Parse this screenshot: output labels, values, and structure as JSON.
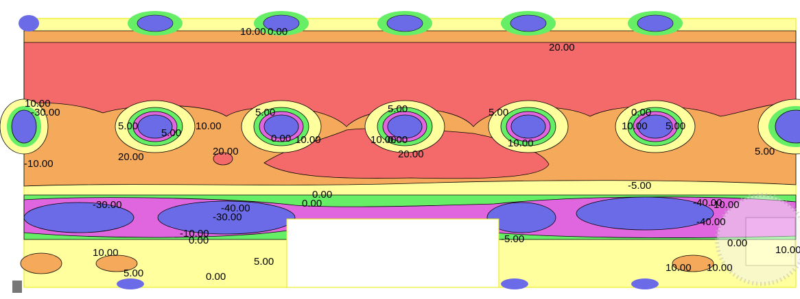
{
  "contour_labels": [
    "10.00",
    "0.00",
    "20.00",
    "10.00",
    "5.00",
    "5.00",
    "10.00",
    "5.00",
    "0.00",
    "10.00",
    "5.00",
    "20.00",
    "0.00",
    "5.00",
    "10.00",
    "10.00",
    "0.00",
    "5.00",
    "20.00",
    "20.00",
    "10.00",
    "5.00",
    "-30.00",
    "-10.00",
    "-40.00",
    "-30.00",
    "-10.00",
    "0.00",
    "0.00",
    "-40.00",
    "-5.00",
    "-5.00",
    "-30.00",
    "-40.00",
    "-10.00",
    "10.00",
    "5.00",
    "10.00",
    "5.00",
    "10.00",
    "0.00",
    "0.00",
    "0.00",
    "10.00"
  ]
}
